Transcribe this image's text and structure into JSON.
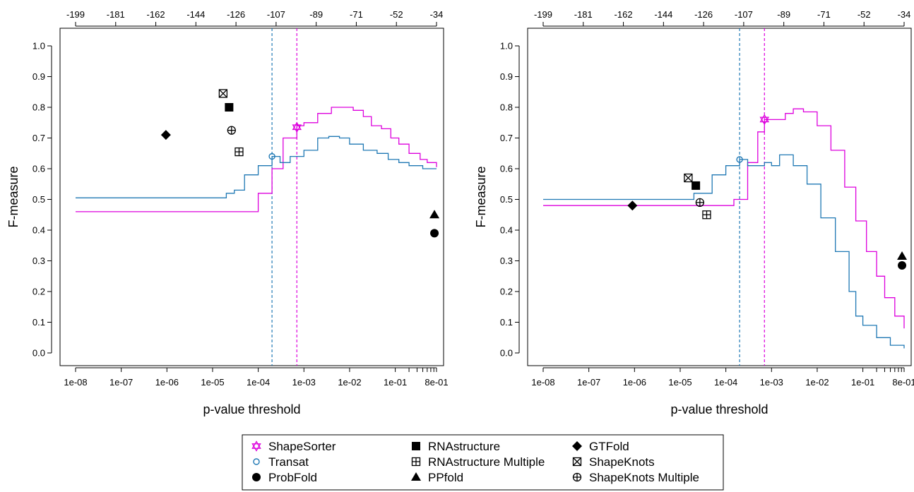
{
  "colors": {
    "shapesorter": "#dd00dd",
    "transat": "#1f78b4",
    "marker": "#000000",
    "shapesorter_threshold_line": "#dd00dd",
    "transat_threshold_line": "#1f78b4"
  },
  "legend": {
    "items": [
      {
        "key": "shapesorter",
        "label": "ShapeSorter",
        "marker": "star-of-david",
        "color": "#dd00dd"
      },
      {
        "key": "transat",
        "label": "Transat",
        "marker": "open-circle",
        "color": "#1f78b4"
      },
      {
        "key": "probfold",
        "label": "ProbFold",
        "marker": "filled-circle",
        "color": "#000000"
      },
      {
        "key": "rnastructure",
        "label": "RNAstructure",
        "marker": "filled-square",
        "color": "#000000"
      },
      {
        "key": "rnastructure_multiple",
        "label": "RNAstructure Multiple",
        "marker": "boxed-plus",
        "color": "#000000"
      },
      {
        "key": "ppfold",
        "label": "PPfold",
        "marker": "filled-triangle",
        "color": "#000000"
      },
      {
        "key": "gtfold",
        "label": "GTFold",
        "marker": "filled-diamond",
        "color": "#000000"
      },
      {
        "key": "shapeknots",
        "label": "ShapeKnots",
        "marker": "boxed-x",
        "color": "#000000"
      },
      {
        "key": "shapeknots_multiple",
        "label": "ShapeKnots Multiple",
        "marker": "circled-plus",
        "color": "#000000"
      }
    ]
  },
  "chart_data": [
    {
      "type": "line",
      "xlabel": "p-value threshold",
      "ylabel": "F-measure",
      "x_scale": "log10",
      "xlim": [
        1e-08,
        0.8
      ],
      "ylim": [
        0.0,
        1.0
      ],
      "x_ticks": [
        "1e-08",
        "1e-07",
        "1e-06",
        "1e-05",
        "1e-04",
        "1e-03",
        "1e-02",
        "1e-01",
        "8e-01"
      ],
      "y_ticks": [
        "0.0",
        "0.1",
        "0.2",
        "0.3",
        "0.4",
        "0.5",
        "0.6",
        "0.7",
        "0.8",
        "0.9",
        "1.0"
      ],
      "top_axis_ticks": [
        "-199",
        "-181",
        "-162",
        "-144",
        "-126",
        "-107",
        "-89",
        "-71",
        "-52",
        "-34"
      ],
      "grid": false,
      "series": [
        {
          "key": "shapesorter",
          "x": [
            1e-08,
            1e-07,
            1e-06,
            1e-05,
            6e-05,
            0.0001,
            0.0002,
            0.00035,
            0.0005,
            0.0007,
            0.001,
            0.002,
            0.004,
            0.007,
            0.012,
            0.02,
            0.03,
            0.05,
            0.08,
            0.12,
            0.2,
            0.35,
            0.5,
            0.8
          ],
          "y": [
            0.46,
            0.46,
            0.46,
            0.46,
            0.46,
            0.52,
            0.6,
            0.7,
            0.7,
            0.74,
            0.75,
            0.78,
            0.8,
            0.8,
            0.79,
            0.77,
            0.74,
            0.73,
            0.7,
            0.68,
            0.65,
            0.63,
            0.62,
            0.605
          ]
        },
        {
          "key": "transat",
          "x": [
            1e-08,
            1e-07,
            1e-06,
            1e-05,
            2e-05,
            3e-05,
            5e-05,
            0.0001,
            0.0002,
            0.0003,
            0.0005,
            0.001,
            0.002,
            0.0035,
            0.006,
            0.01,
            0.02,
            0.04,
            0.07,
            0.12,
            0.2,
            0.4,
            0.8
          ],
          "y": [
            0.505,
            0.505,
            0.505,
            0.505,
            0.52,
            0.53,
            0.58,
            0.61,
            0.64,
            0.62,
            0.64,
            0.66,
            0.7,
            0.705,
            0.7,
            0.68,
            0.66,
            0.65,
            0.63,
            0.62,
            0.61,
            0.6,
            0.6
          ]
        }
      ],
      "thresholds": [
        {
          "key": "transat",
          "x": 0.0002
        },
        {
          "key": "shapesorter",
          "x": 0.0007
        }
      ],
      "highlights": [
        {
          "key": "shapesorter",
          "x": 0.0007,
          "y": 0.735
        },
        {
          "key": "transat",
          "x": 0.0002,
          "y": 0.64
        }
      ],
      "points": [
        {
          "key": "gtfold",
          "x": 9.5e-07,
          "y": 0.71
        },
        {
          "key": "shapeknots",
          "x": 1.7e-05,
          "y": 0.845
        },
        {
          "key": "rnastructure",
          "x": 2.3e-05,
          "y": 0.8
        },
        {
          "key": "shapeknots_multiple",
          "x": 2.6e-05,
          "y": 0.725
        },
        {
          "key": "rnastructure_multiple",
          "x": 3.8e-05,
          "y": 0.655
        },
        {
          "key": "ppfold",
          "x": 0.72,
          "y": 0.45
        },
        {
          "key": "probfold",
          "x": 0.72,
          "y": 0.39
        }
      ]
    },
    {
      "type": "line",
      "xlabel": "p-value threshold",
      "ylabel": "F-measure",
      "x_scale": "log10",
      "xlim": [
        1e-08,
        0.8
      ],
      "ylim": [
        0.0,
        1.0
      ],
      "x_ticks": [
        "1e-08",
        "1e-07",
        "1e-06",
        "1e-05",
        "1e-04",
        "1e-03",
        "1e-02",
        "1e-01",
        "8e-01"
      ],
      "y_ticks": [
        "0.0",
        "0.1",
        "0.2",
        "0.3",
        "0.4",
        "0.5",
        "0.6",
        "0.7",
        "0.8",
        "0.9",
        "1.0"
      ],
      "top_axis_ticks": [
        "-199",
        "-181",
        "-162",
        "-144",
        "-126",
        "-107",
        "-89",
        "-71",
        "-52",
        "-34"
      ],
      "grid": false,
      "series": [
        {
          "key": "shapesorter",
          "x": [
            1e-08,
            1e-07,
            1e-06,
            1e-05,
            0.0001,
            0.00015,
            0.0003,
            0.0005,
            0.0007,
            0.001,
            0.002,
            0.003,
            0.005,
            0.01,
            0.02,
            0.04,
            0.07,
            0.12,
            0.2,
            0.3,
            0.5,
            0.8
          ],
          "y": [
            0.48,
            0.48,
            0.48,
            0.48,
            0.48,
            0.5,
            0.62,
            0.72,
            0.76,
            0.76,
            0.78,
            0.795,
            0.785,
            0.74,
            0.66,
            0.54,
            0.43,
            0.33,
            0.25,
            0.18,
            0.12,
            0.08
          ]
        },
        {
          "key": "transat",
          "x": [
            1e-08,
            1e-07,
            1e-06,
            1e-05,
            2e-05,
            5e-05,
            0.0001,
            0.0002,
            0.0003,
            0.0005,
            0.0007,
            0.001,
            0.0015,
            0.003,
            0.006,
            0.012,
            0.025,
            0.05,
            0.07,
            0.1,
            0.2,
            0.4,
            0.8
          ],
          "y": [
            0.5,
            0.5,
            0.5,
            0.5,
            0.52,
            0.58,
            0.61,
            0.63,
            0.61,
            0.61,
            0.62,
            0.61,
            0.645,
            0.61,
            0.55,
            0.44,
            0.33,
            0.2,
            0.12,
            0.09,
            0.05,
            0.025,
            0.015
          ]
        }
      ],
      "thresholds": [
        {
          "key": "transat",
          "x": 0.0002
        },
        {
          "key": "shapesorter",
          "x": 0.0007
        }
      ],
      "highlights": [
        {
          "key": "shapesorter",
          "x": 0.0007,
          "y": 0.76
        },
        {
          "key": "transat",
          "x": 0.0002,
          "y": 0.63
        }
      ],
      "points": [
        {
          "key": "gtfold",
          "x": 9e-07,
          "y": 0.48
        },
        {
          "key": "shapeknots",
          "x": 1.5e-05,
          "y": 0.57
        },
        {
          "key": "rnastructure",
          "x": 2.2e-05,
          "y": 0.545
        },
        {
          "key": "shapeknots_multiple",
          "x": 2.7e-05,
          "y": 0.49
        },
        {
          "key": "rnastructure_multiple",
          "x": 3.8e-05,
          "y": 0.45
        },
        {
          "key": "ppfold",
          "x": 0.72,
          "y": 0.315
        },
        {
          "key": "probfold",
          "x": 0.72,
          "y": 0.285
        }
      ]
    }
  ]
}
